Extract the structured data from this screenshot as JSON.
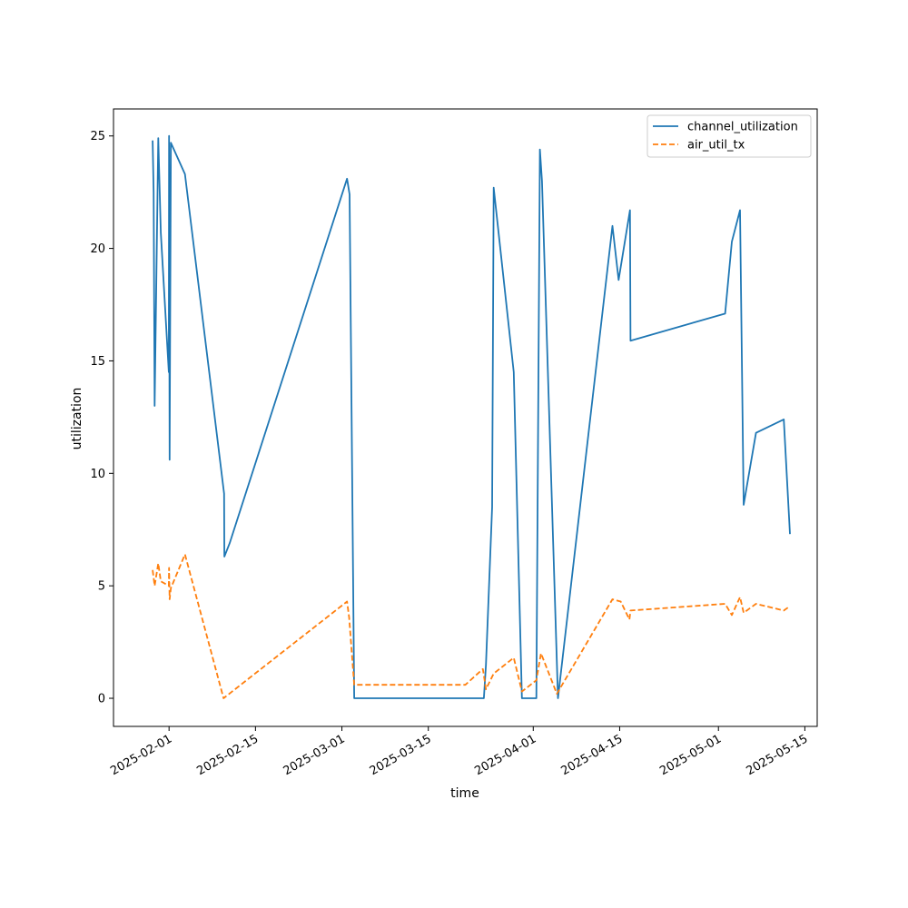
{
  "chart_data": {
    "type": "line",
    "title": "",
    "xlabel": "time",
    "ylabel": "utilization",
    "x_type": "date",
    "xlim": [
      "2025-01-23",
      "2025-05-17"
    ],
    "ylim": [
      -1.25,
      26.2
    ],
    "x_ticks": [
      "2025-02-01",
      "2025-02-15",
      "2025-03-01",
      "2025-03-15",
      "2025-04-01",
      "2025-04-15",
      "2025-05-01",
      "2025-05-15"
    ],
    "y_ticks": [
      0,
      5,
      10,
      15,
      20,
      25
    ],
    "grid": false,
    "legend_position": "top-right",
    "series": [
      {
        "name": "channel_utilization",
        "color": "#1f77b4",
        "style": "solid",
        "points": [
          [
            "2025-01-29T08:00",
            24.8
          ],
          [
            "2025-01-29T12:00",
            22.5
          ],
          [
            "2025-01-29T16:00",
            13.0
          ],
          [
            "2025-01-30T06:00",
            24.9
          ],
          [
            "2025-01-30T16:00",
            20.7
          ],
          [
            "2025-01-31T23:00",
            14.5
          ],
          [
            "2025-02-01T00:00",
            25.0
          ],
          [
            "2025-02-01T01:00",
            16.5
          ],
          [
            "2025-02-01T02:00",
            10.6
          ],
          [
            "2025-02-01T07:00",
            24.7
          ],
          [
            "2025-02-03T14:00",
            23.3
          ],
          [
            "2025-02-09T22:00",
            9.1
          ],
          [
            "2025-02-09T23:00",
            6.3
          ],
          [
            "2025-02-10T20:00",
            6.9
          ],
          [
            "2025-02-29T20:00",
            23.1
          ],
          [
            "2025-03-02T06:00",
            22.4
          ],
          [
            "2025-03-03T00:00",
            0.0
          ],
          [
            "2025-03-24T00:00",
            0.0
          ],
          [
            "2025-03-24T08:00",
            1.5
          ],
          [
            "2025-03-25T08:00",
            8.5
          ],
          [
            "2025-03-25T14:00",
            22.7
          ],
          [
            "2025-03-28T20:00",
            14.5
          ],
          [
            "2025-03-30T04:00",
            0.0
          ],
          [
            "2025-04-01T12:00",
            0.0
          ],
          [
            "2025-04-02T02:00",
            24.4
          ],
          [
            "2025-04-02T10:00",
            23.0
          ],
          [
            "2025-04-05T00:00",
            0.0
          ],
          [
            "2025-04-13T20:00",
            21.0
          ],
          [
            "2025-04-14T20:00",
            18.6
          ],
          [
            "2025-04-16T16:00",
            21.7
          ],
          [
            "2025-04-16T18:00",
            15.9
          ],
          [
            "2025-05-02T02:00",
            17.1
          ],
          [
            "2025-05-03T04:00",
            20.3
          ],
          [
            "2025-05-04T12:00",
            21.7
          ],
          [
            "2025-05-05T02:00",
            8.6
          ],
          [
            "2025-05-07T02:00",
            11.8
          ],
          [
            "2025-05-11T14:00",
            12.4
          ],
          [
            "2025-05-12T14:00",
            7.3
          ]
        ]
      },
      {
        "name": "air_util_tx",
        "color": "#ff7f0e",
        "style": "dashed",
        "points": [
          [
            "2025-01-29T08:00",
            5.7
          ],
          [
            "2025-01-29T16:00",
            5.0
          ],
          [
            "2025-01-30T06:00",
            6.0
          ],
          [
            "2025-01-30T16:00",
            5.2
          ],
          [
            "2025-01-31T23:00",
            5.0
          ],
          [
            "2025-02-01T00:00",
            5.8
          ],
          [
            "2025-02-01T02:00",
            4.4
          ],
          [
            "2025-02-01T07:00",
            4.9
          ],
          [
            "2025-02-03T14:00",
            6.4
          ],
          [
            "2025-02-09T20:00",
            0.0
          ],
          [
            "2025-02-29T20:00",
            4.3
          ],
          [
            "2025-03-02T04:00",
            3.6
          ],
          [
            "2025-03-03T00:00",
            0.6
          ],
          [
            "2025-03-21T00:00",
            0.6
          ],
          [
            "2025-03-23T20:00",
            1.3
          ],
          [
            "2025-03-24T08:00",
            0.4
          ],
          [
            "2025-03-25T14:00",
            1.1
          ],
          [
            "2025-03-28T20:00",
            1.8
          ],
          [
            "2025-03-30T04:00",
            0.3
          ],
          [
            "2025-04-01T12:00",
            0.8
          ],
          [
            "2025-04-02T06:00",
            2.0
          ],
          [
            "2025-04-04T20:00",
            0.2
          ],
          [
            "2025-04-13T20:00",
            4.4
          ],
          [
            "2025-04-15T04:00",
            4.3
          ],
          [
            "2025-04-16T14:00",
            3.5
          ],
          [
            "2025-04-16T18:00",
            3.9
          ],
          [
            "2025-05-02T02:00",
            4.2
          ],
          [
            "2025-05-03T04:00",
            3.7
          ],
          [
            "2025-05-04T12:00",
            4.5
          ],
          [
            "2025-05-05T02:00",
            3.8
          ],
          [
            "2025-05-07T02:00",
            4.2
          ],
          [
            "2025-05-11T14:00",
            3.9
          ],
          [
            "2025-05-12T14:00",
            4.1
          ]
        ]
      }
    ]
  }
}
